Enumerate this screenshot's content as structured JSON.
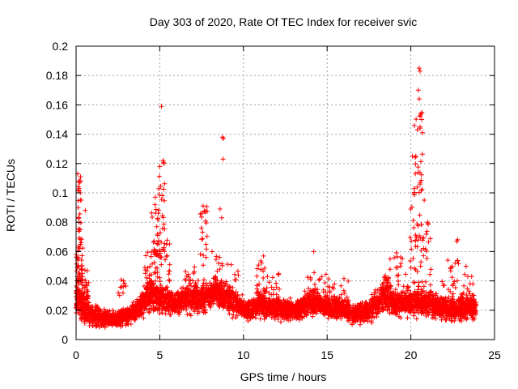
{
  "chart_data": {
    "type": "scatter",
    "title": "Day 303 of 2020, Rate Of TEC Index for receiver svic",
    "xlabel": "GPS time / hours",
    "ylabel": "ROTI / TECUs",
    "xlim": [
      0,
      25
    ],
    "ylim": [
      0,
      0.2
    ],
    "xticks": [
      0,
      5,
      10,
      15,
      20,
      25
    ],
    "yticks": [
      0,
      0.02,
      0.04,
      0.06,
      0.08,
      0.1,
      0.12,
      0.14,
      0.16,
      0.18,
      0.2
    ],
    "grid": true,
    "marker": "+",
    "marker_color": "#ff0000",
    "baseline_envelope": [
      [
        0.0,
        0.03,
        0.02
      ],
      [
        0.5,
        0.02,
        0.012
      ],
      [
        1.0,
        0.017,
        0.01
      ],
      [
        1.5,
        0.015,
        0.008
      ],
      [
        2.0,
        0.014,
        0.007
      ],
      [
        2.5,
        0.014,
        0.007
      ],
      [
        3.0,
        0.016,
        0.008
      ],
      [
        3.5,
        0.02,
        0.01
      ],
      [
        4.0,
        0.025,
        0.012
      ],
      [
        4.5,
        0.03,
        0.015
      ],
      [
        5.0,
        0.03,
        0.015
      ],
      [
        5.5,
        0.025,
        0.012
      ],
      [
        6.0,
        0.025,
        0.012
      ],
      [
        6.5,
        0.028,
        0.013
      ],
      [
        7.0,
        0.028,
        0.013
      ],
      [
        7.5,
        0.028,
        0.013
      ],
      [
        8.0,
        0.03,
        0.014
      ],
      [
        8.5,
        0.033,
        0.015
      ],
      [
        9.0,
        0.028,
        0.013
      ],
      [
        9.5,
        0.025,
        0.012
      ],
      [
        10.0,
        0.02,
        0.01
      ],
      [
        10.5,
        0.02,
        0.01
      ],
      [
        11.0,
        0.025,
        0.012
      ],
      [
        11.5,
        0.022,
        0.011
      ],
      [
        12.0,
        0.022,
        0.011
      ],
      [
        12.5,
        0.02,
        0.01
      ],
      [
        13.0,
        0.02,
        0.01
      ],
      [
        13.5,
        0.022,
        0.011
      ],
      [
        14.0,
        0.025,
        0.012
      ],
      [
        14.5,
        0.025,
        0.012
      ],
      [
        15.0,
        0.022,
        0.011
      ],
      [
        15.5,
        0.022,
        0.011
      ],
      [
        16.0,
        0.02,
        0.01
      ],
      [
        16.5,
        0.018,
        0.009
      ],
      [
        17.0,
        0.018,
        0.009
      ],
      [
        17.5,
        0.02,
        0.01
      ],
      [
        18.0,
        0.025,
        0.012
      ],
      [
        18.5,
        0.03,
        0.015
      ],
      [
        19.0,
        0.025,
        0.012
      ],
      [
        19.5,
        0.025,
        0.012
      ],
      [
        20.0,
        0.025,
        0.012
      ],
      [
        20.5,
        0.025,
        0.012
      ],
      [
        21.0,
        0.025,
        0.012
      ],
      [
        21.5,
        0.022,
        0.011
      ],
      [
        22.0,
        0.022,
        0.011
      ],
      [
        22.5,
        0.02,
        0.01
      ],
      [
        23.0,
        0.022,
        0.011
      ],
      [
        23.5,
        0.022,
        0.011
      ],
      [
        23.9,
        0.022,
        0.011
      ]
    ],
    "clusters": [
      {
        "x": [
          0.0,
          0.4
        ],
        "y": [
          0.02,
          0.07
        ],
        "n": 70
      },
      {
        "x": [
          0.1,
          0.3
        ],
        "y": [
          0.07,
          0.113
        ],
        "n": 18
      },
      {
        "x": [
          0.3,
          0.8
        ],
        "y": [
          0.02,
          0.05
        ],
        "n": 40
      },
      {
        "x": [
          2.5,
          3.0
        ],
        "y": [
          0.03,
          0.044
        ],
        "n": 10
      },
      {
        "x": [
          4.0,
          4.9
        ],
        "y": [
          0.03,
          0.06
        ],
        "n": 55
      },
      {
        "x": [
          4.5,
          5.0
        ],
        "y": [
          0.06,
          0.1
        ],
        "n": 22
      },
      {
        "x": [
          4.9,
          5.3
        ],
        "y": [
          0.05,
          0.122
        ],
        "n": 30
      },
      {
        "x": [
          5.3,
          5.6
        ],
        "y": [
          0.04,
          0.07
        ],
        "n": 12
      },
      {
        "x": [
          6.5,
          7.3
        ],
        "y": [
          0.03,
          0.05
        ],
        "n": 25
      },
      {
        "x": [
          7.4,
          7.9
        ],
        "y": [
          0.05,
          0.092
        ],
        "n": 22
      },
      {
        "x": [
          8.1,
          8.6
        ],
        "y": [
          0.03,
          0.06
        ],
        "n": 20
      },
      {
        "x": [
          8.7,
          9.8
        ],
        "y": [
          0.03,
          0.052
        ],
        "n": 25
      },
      {
        "x": [
          10.8,
          11.3
        ],
        "y": [
          0.03,
          0.057
        ],
        "n": 18
      },
      {
        "x": [
          11.3,
          12.2
        ],
        "y": [
          0.025,
          0.045
        ],
        "n": 25
      },
      {
        "x": [
          13.5,
          14.4
        ],
        "y": [
          0.025,
          0.05
        ],
        "n": 25
      },
      {
        "x": [
          14.4,
          15.5
        ],
        "y": [
          0.025,
          0.045
        ],
        "n": 20
      },
      {
        "x": [
          15.6,
          16.3
        ],
        "y": [
          0.025,
          0.042
        ],
        "n": 12
      },
      {
        "x": [
          18.2,
          18.8
        ],
        "y": [
          0.03,
          0.06
        ],
        "n": 20
      },
      {
        "x": [
          19.0,
          19.8
        ],
        "y": [
          0.03,
          0.06
        ],
        "n": 22
      },
      {
        "x": [
          19.9,
          20.6
        ],
        "y": [
          0.03,
          0.1
        ],
        "n": 40
      },
      {
        "x": [
          20.2,
          20.7
        ],
        "y": [
          0.1,
          0.155
        ],
        "n": 25
      },
      {
        "x": [
          20.6,
          21.2
        ],
        "y": [
          0.03,
          0.08
        ],
        "n": 30
      },
      {
        "x": [
          21.2,
          22.0
        ],
        "y": [
          0.025,
          0.042
        ],
        "n": 18
      },
      {
        "x": [
          22.2,
          22.9
        ],
        "y": [
          0.025,
          0.055
        ],
        "n": 25
      },
      {
        "x": [
          23.0,
          23.8
        ],
        "y": [
          0.02,
          0.045
        ],
        "n": 25
      }
    ],
    "points": [
      [
        0.1,
        0.113
      ],
      [
        0.15,
        0.108
      ],
      [
        0.2,
        0.107
      ],
      [
        0.25,
        0.1
      ],
      [
        0.3,
        0.095
      ],
      [
        0.12,
        0.09
      ],
      [
        0.55,
        0.088
      ],
      [
        5.1,
        0.159
      ],
      [
        5.0,
        0.118
      ],
      [
        5.2,
        0.122
      ],
      [
        5.25,
        0.12
      ],
      [
        8.6,
        0.089
      ],
      [
        8.75,
        0.138
      ],
      [
        8.8,
        0.137
      ],
      [
        8.78,
        0.123
      ],
      [
        8.7,
        0.083
      ],
      [
        11.2,
        0.057
      ],
      [
        14.2,
        0.06
      ],
      [
        20.5,
        0.185
      ],
      [
        20.55,
        0.183
      ],
      [
        20.45,
        0.17
      ],
      [
        20.5,
        0.164
      ],
      [
        20.6,
        0.154
      ],
      [
        20.65,
        0.15
      ],
      [
        20.55,
        0.145
      ],
      [
        20.3,
        0.125
      ],
      [
        20.1,
        0.125
      ],
      [
        20.8,
        0.095
      ],
      [
        21.0,
        0.08
      ],
      [
        20.2,
        0.103
      ],
      [
        22.8,
        0.068
      ],
      [
        22.75,
        0.067
      ],
      [
        23.3,
        0.05
      ]
    ]
  }
}
